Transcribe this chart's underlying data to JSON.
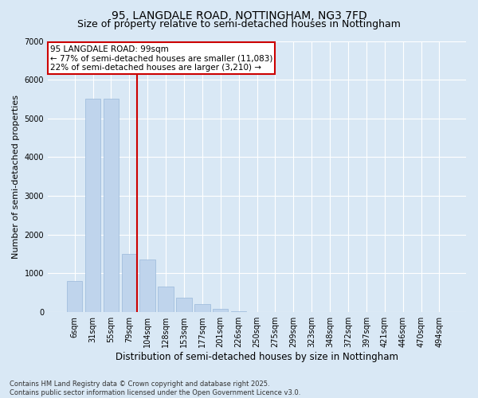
{
  "title": "95, LANGDALE ROAD, NOTTINGHAM, NG3 7FD",
  "subtitle": "Size of property relative to semi-detached houses in Nottingham",
  "xlabel": "Distribution of semi-detached houses by size in Nottingham",
  "ylabel": "Number of semi-detached properties",
  "categories": [
    "6sqm",
    "31sqm",
    "55sqm",
    "79sqm",
    "104sqm",
    "128sqm",
    "153sqm",
    "177sqm",
    "201sqm",
    "226sqm",
    "250sqm",
    "275sqm",
    "299sqm",
    "323sqm",
    "348sqm",
    "372sqm",
    "397sqm",
    "421sqm",
    "446sqm",
    "470sqm",
    "494sqm"
  ],
  "values": [
    800,
    5500,
    5500,
    1500,
    1350,
    650,
    380,
    200,
    80,
    20,
    5,
    2,
    1,
    0,
    0,
    0,
    0,
    0,
    0,
    0,
    0
  ],
  "bar_color": "#bfd4ec",
  "bar_edge_color": "#9ab8da",
  "vline_pos": 3.43,
  "vline_color": "#cc0000",
  "annotation_title": "95 LANGDALE ROAD: 99sqm",
  "annotation_line1": "← 77% of semi-detached houses are smaller (11,083)",
  "annotation_line2": "22% of semi-detached houses are larger (3,210) →",
  "annotation_box_color": "#ffffff",
  "annotation_box_edge": "#cc0000",
  "ylim": [
    0,
    7000
  ],
  "yticks": [
    0,
    1000,
    2000,
    3000,
    4000,
    5000,
    6000,
    7000
  ],
  "bg_color": "#d9e8f5",
  "plot_bg_color": "#d9e8f5",
  "footer_line1": "Contains HM Land Registry data © Crown copyright and database right 2025.",
  "footer_line2": "Contains public sector information licensed under the Open Government Licence v3.0.",
  "title_fontsize": 10,
  "subtitle_fontsize": 9,
  "tick_fontsize": 7,
  "ylabel_fontsize": 8,
  "xlabel_fontsize": 8.5,
  "annotation_fontsize": 7.5
}
